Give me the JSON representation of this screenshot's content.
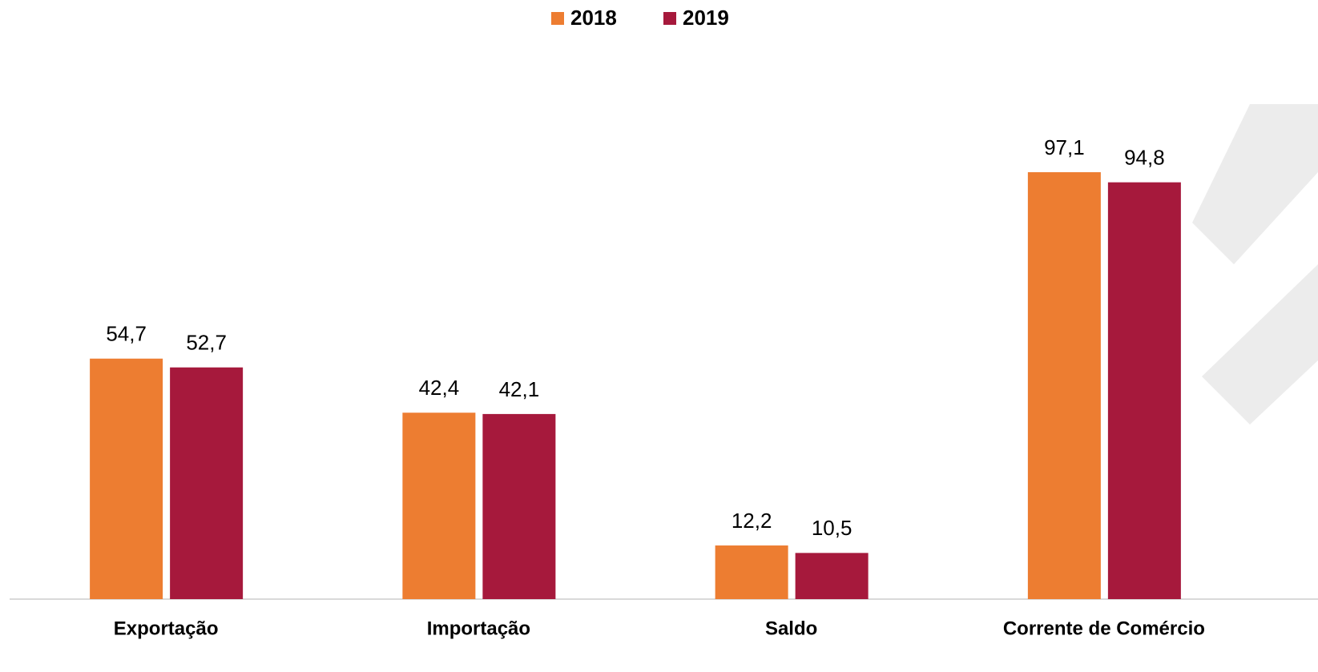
{
  "chart_data": {
    "type": "bar",
    "categories": [
      "Exportação",
      "Importação",
      "Saldo",
      "Corrente de Comércio"
    ],
    "series": [
      {
        "name": "2018",
        "color": "#ed7d31",
        "values": [
          54.7,
          42.4,
          12.2,
          97.1
        ],
        "value_labels": [
          "54,7",
          "42,4",
          "12,2",
          "97,1"
        ]
      },
      {
        "name": "2019",
        "color": "#a6193c",
        "values": [
          52.7,
          42.1,
          10.5,
          94.8
        ],
        "value_labels": [
          "52,7",
          "42,1",
          "10,5",
          "94,8"
        ]
      }
    ],
    "legend": "top"
  }
}
